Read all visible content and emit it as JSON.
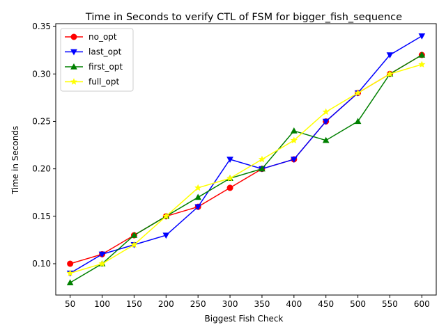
{
  "chart_data": {
    "type": "line",
    "title": "Time in Seconds to verify CTL of FSM for bigger_fish_sequence",
    "xlabel": "Biggest Fish Check",
    "ylabel": "Time in Seconds",
    "x": [
      50,
      100,
      150,
      200,
      250,
      300,
      350,
      400,
      450,
      500,
      550,
      600
    ],
    "x_tick_labels": [
      "50",
      "100",
      "150",
      "200",
      "250",
      "300",
      "350",
      "400",
      "450",
      "500",
      "550",
      "600"
    ],
    "y_ticks": [
      0.1,
      0.15,
      0.2,
      0.25,
      0.3,
      0.35
    ],
    "y_tick_labels": [
      "0.10",
      "0.15",
      "0.20",
      "0.25",
      "0.30",
      "0.35"
    ],
    "xlim": [
      27.5,
      622.5
    ],
    "ylim": [
      0.067,
      0.353
    ],
    "grid": false,
    "legend_position": "top-left",
    "series": [
      {
        "name": "no_opt",
        "color": "#ff0000",
        "marker": "circle",
        "values": [
          0.1,
          0.11,
          0.13,
          0.15,
          0.16,
          0.18,
          0.2,
          0.21,
          0.25,
          0.28,
          0.3,
          0.32
        ]
      },
      {
        "name": "last_opt",
        "color": "#0000ff",
        "marker": "triangle-down",
        "values": [
          0.09,
          0.11,
          0.12,
          0.13,
          0.16,
          0.21,
          0.2,
          0.21,
          0.25,
          0.28,
          0.32,
          0.34
        ]
      },
      {
        "name": "first_opt",
        "color": "#008000",
        "marker": "triangle-up",
        "values": [
          0.08,
          0.1,
          0.13,
          0.15,
          0.17,
          0.19,
          0.2,
          0.24,
          0.23,
          0.25,
          0.3,
          0.32
        ]
      },
      {
        "name": "full_opt",
        "color": "#ffff00",
        "marker": "star",
        "values": [
          0.09,
          0.1,
          0.12,
          0.15,
          0.18,
          0.19,
          0.21,
          0.23,
          0.26,
          0.28,
          0.3,
          0.31
        ]
      }
    ]
  }
}
